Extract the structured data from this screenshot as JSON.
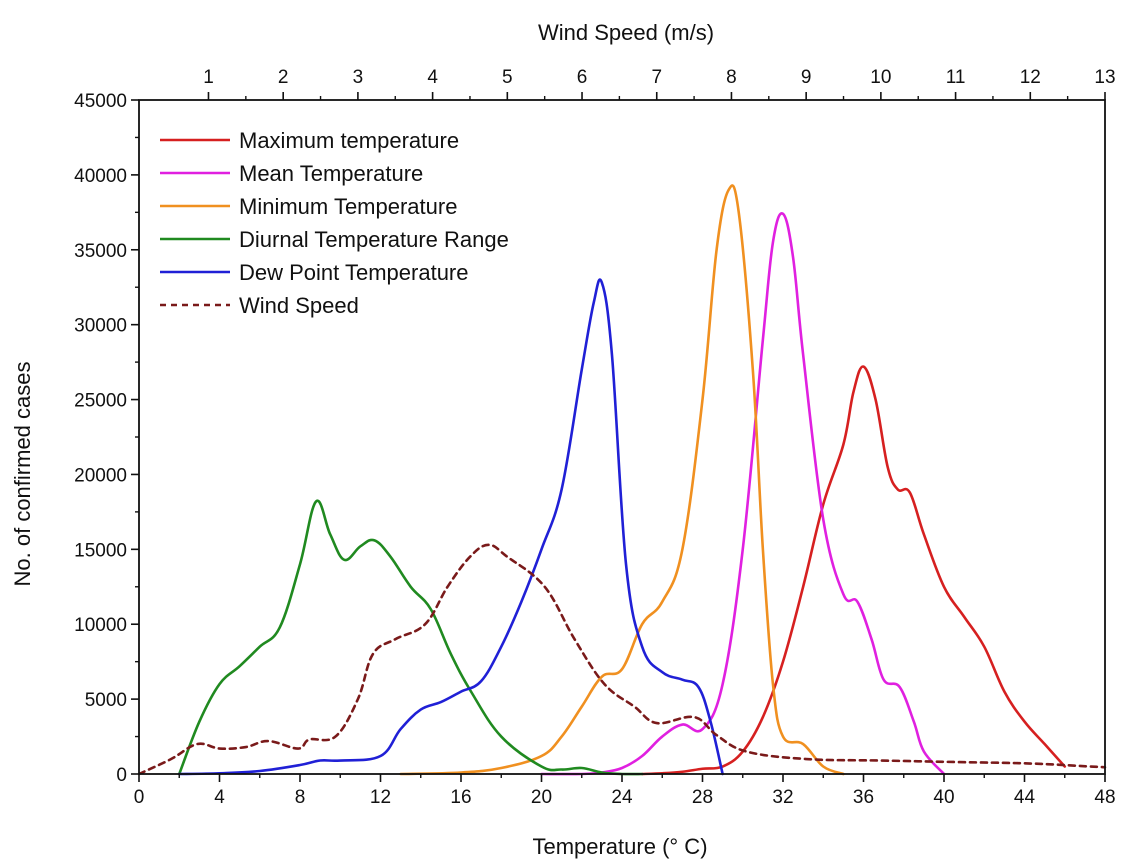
{
  "chart_data": {
    "type": "line",
    "xlabel": "Temperature (° C)",
    "x2label": "Wind Speed (m/s)",
    "ylabel": "No. of confirmed cases",
    "xlim": [
      0,
      48
    ],
    "x2lim": [
      0.07,
      13
    ],
    "ylim": [
      0,
      45000
    ],
    "xticks": [
      "0",
      "4",
      "8",
      "12",
      "16",
      "20",
      "24",
      "28",
      "32",
      "36",
      "40",
      "44",
      "48"
    ],
    "x2ticks": [
      "1",
      "2",
      "3",
      "4",
      "5",
      "6",
      "7",
      "8",
      "9",
      "10",
      "11",
      "12",
      "13"
    ],
    "yticks": [
      "0",
      "5000",
      "10000",
      "15000",
      "20000",
      "25000",
      "30000",
      "35000",
      "40000",
      "45000"
    ],
    "grid": false,
    "legend_position": "top-left",
    "series": [
      {
        "name": "Maximum temperature",
        "color": "#d62020",
        "dash": "solid",
        "axis": "bottom",
        "points": [
          [
            25,
            0
          ],
          [
            26,
            50
          ],
          [
            27,
            150
          ],
          [
            28,
            350
          ],
          [
            29,
            500
          ],
          [
            30,
            1500
          ],
          [
            31,
            3800
          ],
          [
            32,
            7500
          ],
          [
            33,
            12500
          ],
          [
            34,
            18000
          ],
          [
            35,
            22000
          ],
          [
            35.5,
            25500
          ],
          [
            36,
            27200
          ],
          [
            36.6,
            25000
          ],
          [
            37.2,
            20500
          ],
          [
            37.7,
            19000
          ],
          [
            38.3,
            18800
          ],
          [
            39,
            16000
          ],
          [
            40,
            12500
          ],
          [
            41,
            10500
          ],
          [
            42,
            8500
          ],
          [
            43,
            5500
          ],
          [
            44,
            3500
          ],
          [
            45,
            2000
          ],
          [
            46,
            500
          ]
        ]
      },
      {
        "name": "Mean Temperature",
        "color": "#e020e0",
        "dash": "solid",
        "axis": "bottom",
        "points": [
          [
            20,
            0
          ],
          [
            22,
            0
          ],
          [
            23,
            100
          ],
          [
            24,
            400
          ],
          [
            25,
            1200
          ],
          [
            26,
            2500
          ],
          [
            27,
            3300
          ],
          [
            28,
            3000
          ],
          [
            29,
            6000
          ],
          [
            30,
            15000
          ],
          [
            31,
            29000
          ],
          [
            31.5,
            35500
          ],
          [
            32,
            37400
          ],
          [
            32.5,
            34500
          ],
          [
            33,
            28000
          ],
          [
            34,
            17000
          ],
          [
            35,
            12000
          ],
          [
            35.7,
            11500
          ],
          [
            36.4,
            9000
          ],
          [
            37,
            6300
          ],
          [
            37.8,
            5800
          ],
          [
            38.5,
            3500
          ],
          [
            39,
            1500
          ],
          [
            40,
            0
          ]
        ]
      },
      {
        "name": "Minimum Temperature",
        "color": "#f09020",
        "dash": "solid",
        "axis": "bottom",
        "points": [
          [
            13,
            0
          ],
          [
            16,
            100
          ],
          [
            18,
            400
          ],
          [
            20,
            1200
          ],
          [
            21,
            2500
          ],
          [
            22,
            4500
          ],
          [
            23,
            6500
          ],
          [
            24,
            7000
          ],
          [
            25,
            10000
          ],
          [
            26,
            11500
          ],
          [
            27,
            15000
          ],
          [
            28,
            25000
          ],
          [
            28.7,
            35000
          ],
          [
            29.3,
            39000
          ],
          [
            29.8,
            37500
          ],
          [
            30.5,
            27000
          ],
          [
            31,
            15000
          ],
          [
            31.5,
            6000
          ],
          [
            32,
            2500
          ],
          [
            33,
            2000
          ],
          [
            34,
            500
          ],
          [
            35,
            0
          ]
        ]
      },
      {
        "name": "Diurnal Temperature Range",
        "color": "#208a20",
        "dash": "solid",
        "axis": "bottom",
        "points": [
          [
            2,
            0
          ],
          [
            3,
            3500
          ],
          [
            4,
            6000
          ],
          [
            5,
            7200
          ],
          [
            6,
            8500
          ],
          [
            7,
            9800
          ],
          [
            8,
            14000
          ],
          [
            8.8,
            18200
          ],
          [
            9.5,
            16000
          ],
          [
            10.2,
            14300
          ],
          [
            11,
            15200
          ],
          [
            11.7,
            15600
          ],
          [
            12.5,
            14500
          ],
          [
            13.5,
            12500
          ],
          [
            14.5,
            11000
          ],
          [
            15.5,
            8000
          ],
          [
            16.5,
            5500
          ],
          [
            18,
            2500
          ],
          [
            20,
            500
          ],
          [
            21,
            300
          ],
          [
            22,
            400
          ],
          [
            23,
            100
          ],
          [
            24,
            0
          ],
          [
            25,
            0
          ]
        ]
      },
      {
        "name": "Dew Point Temperature",
        "color": "#2020d6",
        "dash": "solid",
        "axis": "bottom",
        "points": [
          [
            2,
            0
          ],
          [
            4,
            50
          ],
          [
            6,
            200
          ],
          [
            8,
            600
          ],
          [
            9,
            900
          ],
          [
            10,
            900
          ],
          [
            12,
            1200
          ],
          [
            13,
            3000
          ],
          [
            14,
            4300
          ],
          [
            15,
            4800
          ],
          [
            16,
            5500
          ],
          [
            17,
            6200
          ],
          [
            18,
            8500
          ],
          [
            19,
            11500
          ],
          [
            20,
            15000
          ],
          [
            21,
            19000
          ],
          [
            22,
            27000
          ],
          [
            22.6,
            31500
          ],
          [
            23,
            32800
          ],
          [
            23.5,
            28000
          ],
          [
            24.2,
            14000
          ],
          [
            25,
            8500
          ],
          [
            26,
            6800
          ],
          [
            27,
            6300
          ],
          [
            27.8,
            5800
          ],
          [
            28.4,
            3500
          ],
          [
            29,
            0
          ]
        ]
      },
      {
        "name": "Wind Speed",
        "color": "#7a1a1a",
        "dash": "dashed",
        "axis": "top",
        "points": [
          [
            0.07,
            0
          ],
          [
            0.5,
            1000
          ],
          [
            0.85,
            2000
          ],
          [
            1.15,
            1700
          ],
          [
            1.5,
            1800
          ],
          [
            1.8,
            2200
          ],
          [
            2.2,
            1700
          ],
          [
            2.35,
            2300
          ],
          [
            2.7,
            2500
          ],
          [
            3.0,
            5000
          ],
          [
            3.2,
            8000
          ],
          [
            3.5,
            9000
          ],
          [
            3.9,
            10000
          ],
          [
            4.2,
            12500
          ],
          [
            4.5,
            14500
          ],
          [
            4.75,
            15300
          ],
          [
            5.0,
            14500
          ],
          [
            5.5,
            12500
          ],
          [
            5.9,
            9000
          ],
          [
            6.3,
            6000
          ],
          [
            6.7,
            4500
          ],
          [
            7.0,
            3400
          ],
          [
            7.5,
            3800
          ],
          [
            7.8,
            2600
          ],
          [
            8.2,
            1500
          ],
          [
            9,
            1000
          ],
          [
            10,
            900
          ],
          [
            11,
            800
          ],
          [
            12,
            700
          ],
          [
            12.8,
            500
          ],
          [
            13,
            450
          ]
        ]
      }
    ]
  }
}
